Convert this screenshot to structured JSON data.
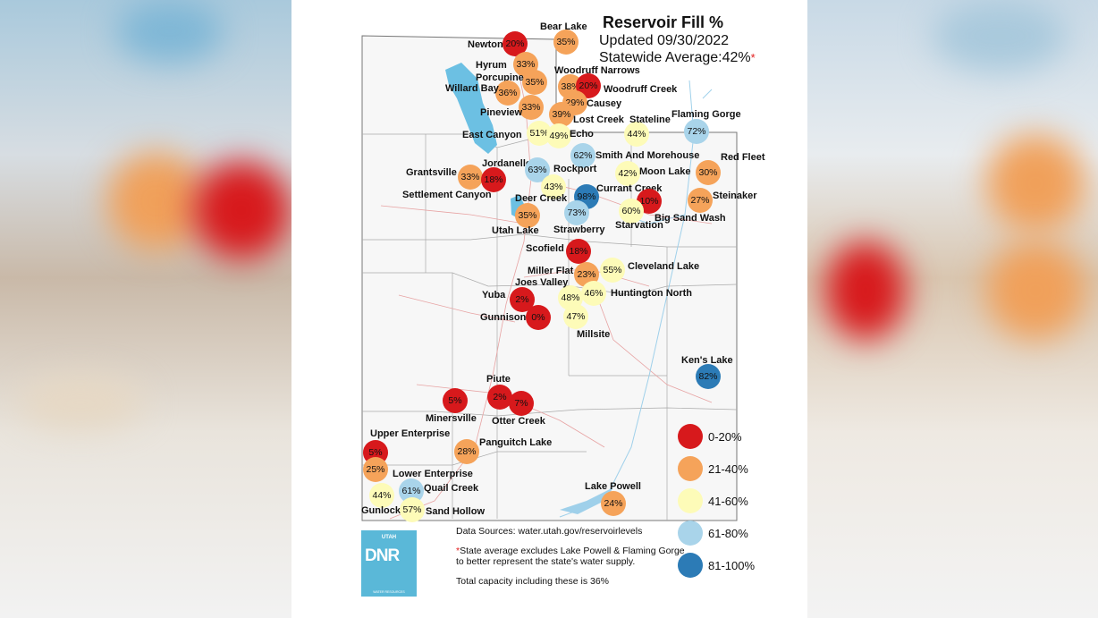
{
  "title": "Reservoir Fill %",
  "updated": "Updated 09/30/2022",
  "statewide": "Statewide Average:42%",
  "asterisk": "*",
  "legend": [
    {
      "label": "0-20%",
      "color": "#d7191c"
    },
    {
      "label": "21-40%",
      "color": "#f5a35a"
    },
    {
      "label": "41-60%",
      "color": "#fdfbb8"
    },
    {
      "label": "61-80%",
      "color": "#a9d4ea"
    },
    {
      "label": "81-100%",
      "color": "#2c7bb6"
    }
  ],
  "reservoirs": [
    {
      "name": "Bear Lake",
      "pct": "35%"
    },
    {
      "name": "Newton",
      "pct": "20%"
    },
    {
      "name": "Hyrum",
      "pct": "33%"
    },
    {
      "name": "Woodruff Narrows",
      "pct": "38%"
    },
    {
      "name": "Porcupine",
      "pct": "35%"
    },
    {
      "name": "Woodruff Creek",
      "pct": "20%"
    },
    {
      "name": "Willard Bay",
      "pct": "36%"
    },
    {
      "name": "Causey",
      "pct": "29%"
    },
    {
      "name": "Pineview",
      "pct": "33%"
    },
    {
      "name": "Lost Creek",
      "pct": "39%"
    },
    {
      "name": "Stateline",
      "pct": "44%"
    },
    {
      "name": "Flaming Gorge",
      "pct": "72%"
    },
    {
      "name": "East Canyon",
      "pct": "51%"
    },
    {
      "name": "Echo",
      "pct": "49%"
    },
    {
      "name": "Smith And Morehouse",
      "pct": "62%"
    },
    {
      "name": "Red Fleet",
      "pct": "30%"
    },
    {
      "name": "Grantsville",
      "pct": "33%"
    },
    {
      "name": "Jordanelle",
      "pct": "18%"
    },
    {
      "name": "Rockport",
      "pct": "63%"
    },
    {
      "name": "Moon Lake",
      "pct": "42%"
    },
    {
      "name": "Currant Creek",
      "pct": "98%"
    },
    {
      "name": "Steinaker",
      "pct": "27%"
    },
    {
      "name": "Settlement Canyon",
      "pct": ""
    },
    {
      "name": "Deer Creek",
      "pct": "43%"
    },
    {
      "name": "Big Sand Wash",
      "pct": "10%"
    },
    {
      "name": "Starvation",
      "pct": "60%"
    },
    {
      "name": "Utah Lake",
      "pct": "35%"
    },
    {
      "name": "Strawberry",
      "pct": "73%"
    },
    {
      "name": "Scofield",
      "pct": "18%"
    },
    {
      "name": "Cleveland Lake",
      "pct": "55%"
    },
    {
      "name": "Miller Flat",
      "pct": "23%"
    },
    {
      "name": "Joes Valley",
      "pct": "48%"
    },
    {
      "name": "Huntington North",
      "pct": "46%"
    },
    {
      "name": "Yuba",
      "pct": "2%"
    },
    {
      "name": "Gunnison",
      "pct": "0%"
    },
    {
      "name": "Millsite",
      "pct": "47%"
    },
    {
      "name": "Ken's Lake",
      "pct": "82%"
    },
    {
      "name": "Piute",
      "pct": "2%"
    },
    {
      "name": "Minersville",
      "pct": "5%"
    },
    {
      "name": "Otter Creek",
      "pct": "7%"
    },
    {
      "name": "Upper Enterprise",
      "pct": "5%"
    },
    {
      "name": "Panguitch Lake",
      "pct": "28%"
    },
    {
      "name": "Lower Enterprise",
      "pct": "25%"
    },
    {
      "name": "Quail Creek",
      "pct": "61%"
    },
    {
      "name": "Gunlock",
      "pct": "44%"
    },
    {
      "name": "Sand Hollow",
      "pct": "57%"
    },
    {
      "name": "Lake Powell",
      "pct": "24%"
    }
  ],
  "notes": {
    "sources": "Data Sources: water.utah.gov/reservoirlevels",
    "star": "*",
    "exclusion": "State average excludes Lake Powell & Flaming Gorge to better represent the state's water supply.",
    "total": "Total capacity including these is 36%"
  },
  "logo": {
    "top": "UTAH",
    "main": "DNR",
    "sub": "WATER RESOURCES"
  }
}
